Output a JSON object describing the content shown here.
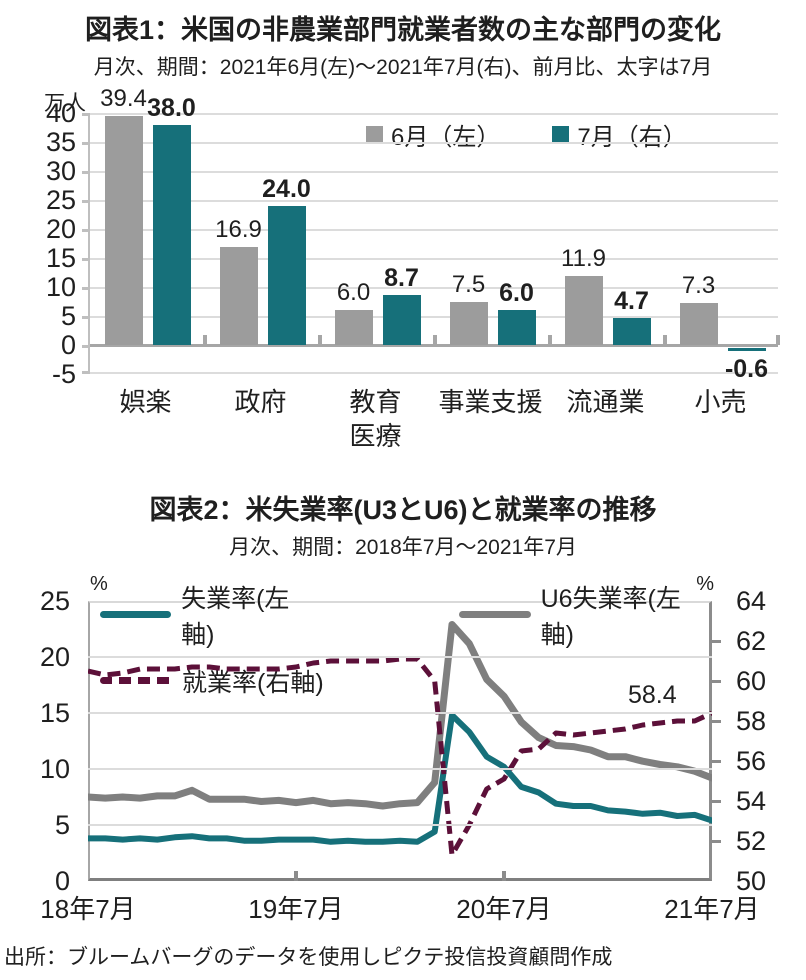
{
  "colors": {
    "teal": "#16707a",
    "gray_bar": "#9c9c9c",
    "gray_line": "#7f7f7f",
    "maroon": "#5c1039",
    "grid": "#dcdcdc",
    "axis": "#a6a6a6",
    "text": "#1f1f1f"
  },
  "chart_data": [
    {
      "type": "bar",
      "title": "図表1：米国の非農業部門就業者数の主な部門の変化",
      "subtitle": "月次、期間：2021年6月(左)～2021年7月(右)、前月比、太字は7月",
      "unit": "万人",
      "categories": [
        [
          "娯楽"
        ],
        [
          "政府"
        ],
        [
          "教育",
          "医療"
        ],
        [
          "事業支援"
        ],
        [
          "流通業"
        ],
        [
          "小売"
        ]
      ],
      "series": [
        {
          "name": "6月（左）",
          "color_key": "gray_bar",
          "values": [
            39.4,
            16.9,
            6.0,
            7.5,
            11.9,
            7.3
          ]
        },
        {
          "name": "7月（右）",
          "color_key": "teal",
          "values": [
            38.0,
            24.0,
            8.7,
            6.0,
            4.7,
            -0.6
          ]
        }
      ],
      "ylim": [
        -5,
        40
      ],
      "ytick_step": 5,
      "grid": true,
      "legend_position": "top-inside"
    },
    {
      "type": "line",
      "title": "図表2：米失業率(U3とU6)と就業率の推移",
      "subtitle": "月次、期間：2018年7月～2021年7月",
      "x_tick_labels": [
        "18年7月",
        "19年7月",
        "20年7月",
        "21年7月"
      ],
      "x_tick_positions": [
        0,
        12,
        24,
        36
      ],
      "x_points": 37,
      "left_axis": {
        "unit": "%",
        "min": 0,
        "max": 25,
        "step": 5
      },
      "right_axis": {
        "unit": "%",
        "min": 50,
        "max": 64,
        "step": 2
      },
      "annotation": {
        "text": "58.4"
      },
      "series": [
        {
          "name": "U6失業率(左軸)",
          "axis": "left",
          "style": "solid",
          "color_key": "gray_line",
          "width": 7,
          "values": [
            7.5,
            7.4,
            7.5,
            7.4,
            7.6,
            7.6,
            8.1,
            7.3,
            7.3,
            7.3,
            7.1,
            7.2,
            7.0,
            7.2,
            6.9,
            7.0,
            6.9,
            6.7,
            6.9,
            7.0,
            8.8,
            22.9,
            21.2,
            18.0,
            16.5,
            14.2,
            12.8,
            12.1,
            12.0,
            11.7,
            11.1,
            11.1,
            10.7,
            10.4,
            10.2,
            9.8,
            9.2
          ]
        },
        {
          "name": "失業率(左軸)",
          "axis": "left",
          "style": "solid",
          "color_key": "teal",
          "width": 6,
          "values": [
            3.8,
            3.8,
            3.7,
            3.8,
            3.7,
            3.9,
            4.0,
            3.8,
            3.8,
            3.6,
            3.6,
            3.7,
            3.7,
            3.7,
            3.5,
            3.6,
            3.5,
            3.5,
            3.6,
            3.5,
            4.4,
            14.8,
            13.3,
            11.1,
            10.2,
            8.4,
            7.9,
            6.9,
            6.7,
            6.7,
            6.3,
            6.2,
            6.0,
            6.1,
            5.8,
            5.9,
            5.4
          ]
        },
        {
          "name": "就業率(右軸)",
          "axis": "right",
          "style": "dashed",
          "color_key": "maroon",
          "width": 5,
          "values": [
            60.5,
            60.3,
            60.4,
            60.6,
            60.6,
            60.6,
            60.7,
            60.7,
            60.6,
            60.6,
            60.6,
            60.6,
            60.7,
            60.9,
            61.0,
            61.0,
            61.0,
            61.0,
            61.1,
            61.1,
            60.0,
            51.3,
            52.8,
            54.6,
            55.1,
            56.5,
            56.6,
            57.4,
            57.3,
            57.4,
            57.5,
            57.6,
            57.8,
            57.9,
            58.0,
            58.0,
            58.4
          ]
        }
      ],
      "legend_order_display": [
        "失業率(左軸)",
        "U6失業率(左軸)",
        "就業率(右軸)"
      ]
    }
  ],
  "footer": {
    "source": "出所：ブルームバーグのデータを使用しピクテ投信投資顧問作成"
  }
}
